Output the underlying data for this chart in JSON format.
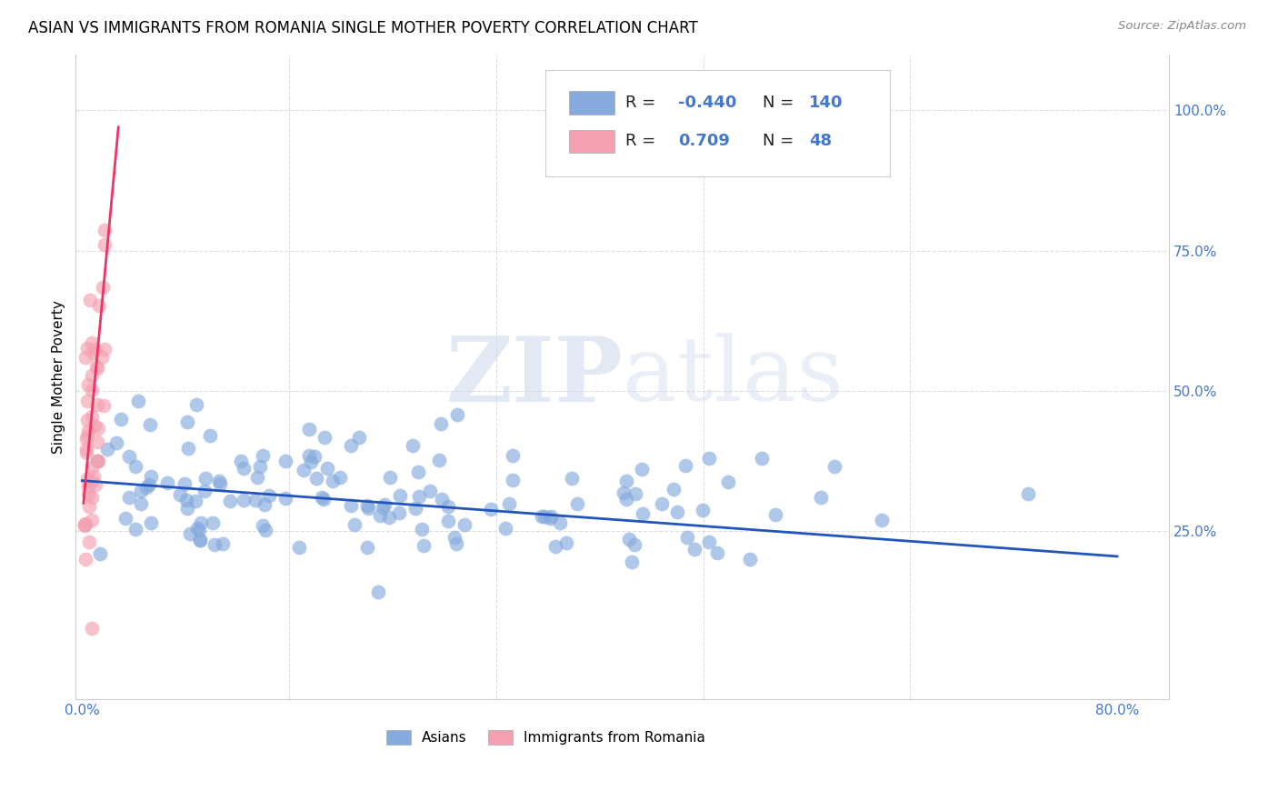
{
  "title": "ASIAN VS IMMIGRANTS FROM ROMANIA SINGLE MOTHER POVERTY CORRELATION CHART",
  "source": "Source: ZipAtlas.com",
  "ylabel": "Single Mother Poverty",
  "blue_R": -0.44,
  "blue_N": 140,
  "pink_R": 0.709,
  "pink_N": 48,
  "blue_color": "#85AADC",
  "pink_color": "#F4A0B0",
  "blue_line_color": "#2255BB",
  "pink_line_color": "#EE3366",
  "legend_label_blue": "Asians",
  "legend_label_pink": "Immigrants from Romania",
  "watermark_zip": "ZIP",
  "watermark_atlas": "atlas",
  "background_color": "#ffffff",
  "grid_color": "#dddddd",
  "title_fontsize": 12,
  "axis_label_color": "#4477CC",
  "xlim": [
    -0.005,
    0.84
  ],
  "ylim": [
    -0.05,
    1.1
  ],
  "blue_trend_x": [
    0.0,
    0.8
  ],
  "blue_trend_y": [
    0.34,
    0.205
  ],
  "pink_trend_x": [
    0.001,
    0.028
  ],
  "pink_trend_y": [
    0.3,
    0.97
  ]
}
